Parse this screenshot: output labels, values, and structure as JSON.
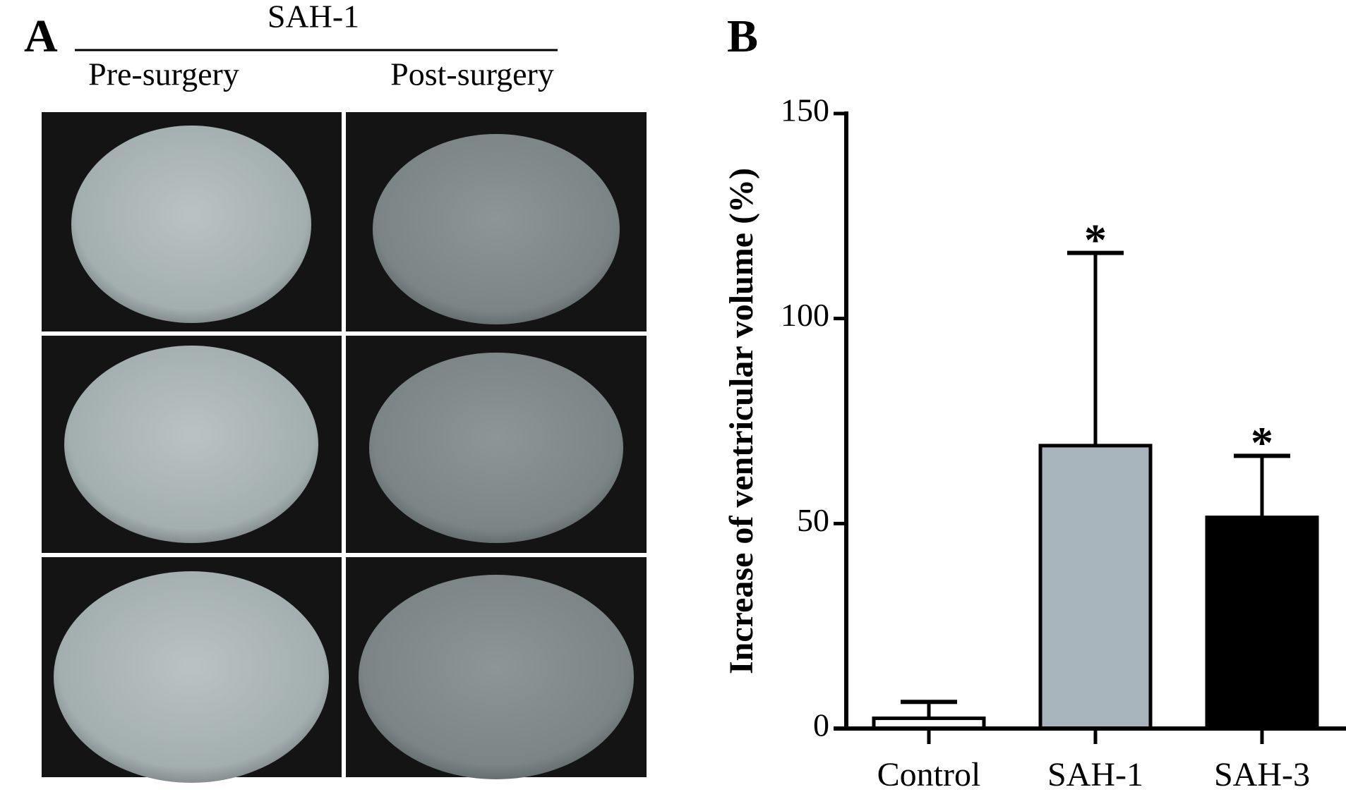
{
  "panel_a": {
    "label": "A",
    "title": "SAH-1",
    "columns": [
      "Pre-surgery",
      "Post-surgery"
    ]
  },
  "chart_data": {
    "type": "bar",
    "panel_label": "B",
    "ylabel": "Increase of ventricular volume (%)",
    "categories": [
      "Control",
      "SAH-1",
      "SAH-3"
    ],
    "values": [
      2.5,
      69,
      51.5
    ],
    "errors": [
      4,
      47,
      15
    ],
    "colors": [
      "#ffffff",
      "#a7b4bc",
      "#000000"
    ],
    "annotations": [
      {
        "category": "SAH-1",
        "text": "*"
      },
      {
        "category": "SAH-3",
        "text": "*"
      }
    ],
    "ylim": [
      0,
      150
    ],
    "yticks": [
      0,
      50,
      100,
      150
    ],
    "grid": false
  }
}
